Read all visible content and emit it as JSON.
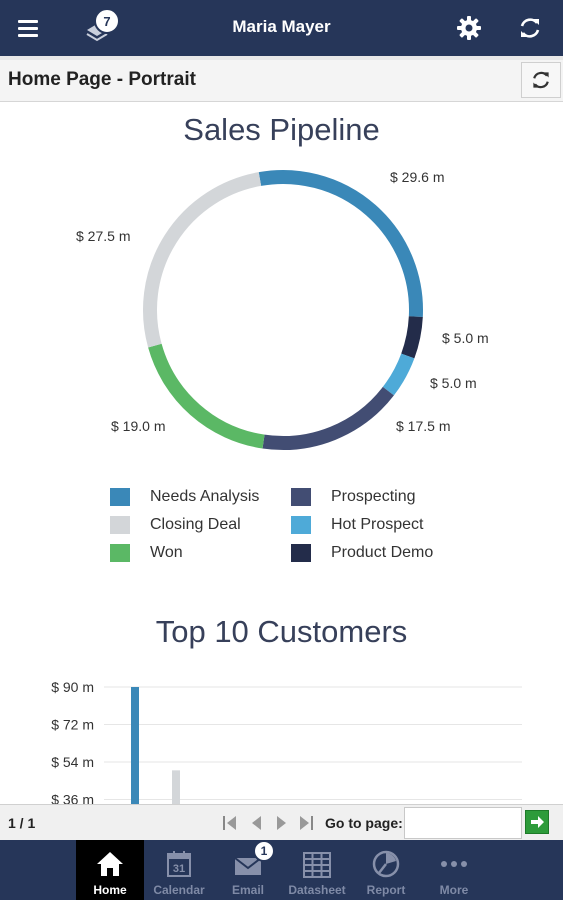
{
  "header": {
    "user_name": "Maria Mayer",
    "notification_count": "7"
  },
  "page": {
    "title": "Home Page - Portrait"
  },
  "sales_pipeline": {
    "title": "Sales Pipeline",
    "legend": [
      {
        "label": "Needs Analysis",
        "color": "#3a88b8"
      },
      {
        "label": "Prospecting",
        "color": "#424d73"
      },
      {
        "label": "Closing Deal",
        "color": "#d3d6d9"
      },
      {
        "label": "Hot Prospect",
        "color": "#4eaad8"
      },
      {
        "label": "Won",
        "color": "#5bb865"
      },
      {
        "label": "Product Demo",
        "color": "#232c4a"
      }
    ]
  },
  "top_customers": {
    "title": "Top 10 Customers"
  },
  "chart_data": [
    {
      "type": "pie",
      "title": "Sales Pipeline",
      "variant": "donut",
      "slices": [
        {
          "name": "Needs Analysis",
          "value": 29.6,
          "label": "$ 29.6 m",
          "color": "#3a88b8"
        },
        {
          "name": "Product Demo",
          "value": 5.0,
          "label": "$ 5.0 m",
          "color": "#232c4a"
        },
        {
          "name": "Hot Prospect",
          "value": 5.0,
          "label": "$ 5.0 m",
          "color": "#4eaad8"
        },
        {
          "name": "Prospecting",
          "value": 17.5,
          "label": "$ 17.5 m",
          "color": "#424d73"
        },
        {
          "name": "Won",
          "value": 19.0,
          "label": "$ 19.0 m",
          "color": "#5bb865"
        },
        {
          "name": "Closing Deal",
          "value": 27.5,
          "label": "$ 27.5 m",
          "color": "#d3d6d9"
        }
      ],
      "legend_placement": "bottom"
    },
    {
      "type": "bar",
      "title": "Top 10 Customers",
      "y_ticks": [
        "$ 90 m",
        "$ 72 m",
        "$ 54 m",
        "$ 36 m"
      ],
      "y_tick_values": [
        90,
        72,
        54,
        36
      ],
      "ylim": [
        0,
        90
      ],
      "grid": true,
      "bars": [
        {
          "value": 90,
          "color": "#3a88b8"
        },
        {
          "value": 50,
          "color": "#d3d6d9"
        }
      ]
    }
  ],
  "pager": {
    "count": "1 / 1",
    "goto_label": "Go to page:",
    "goto_value": ""
  },
  "bottom_nav": [
    {
      "label": "Home",
      "icon": "home-icon",
      "active": true
    },
    {
      "label": "Calendar",
      "icon": "calendar-icon",
      "day": "31"
    },
    {
      "label": "Email",
      "icon": "email-icon",
      "badge": "1"
    },
    {
      "label": "Datasheet",
      "icon": "datasheet-icon"
    },
    {
      "label": "Report",
      "icon": "report-icon"
    },
    {
      "label": "More",
      "icon": "more-icon"
    }
  ]
}
